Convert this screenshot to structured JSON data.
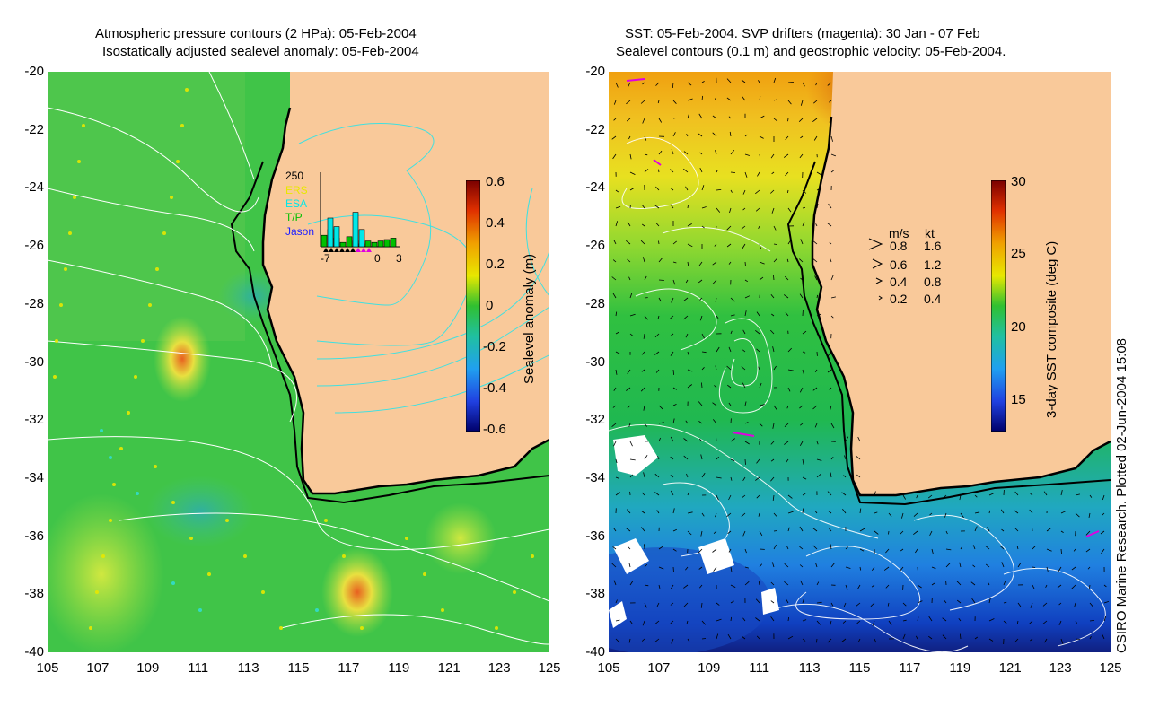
{
  "left_panel": {
    "title_line1": "Atmospheric pressure contours (2 HPa): 05-Feb-2004",
    "title_line2": "Isostatically adjusted sealevel anomaly: 05-Feb-2004",
    "y_ticks": [
      "-20",
      "-22",
      "-24",
      "-26",
      "-28",
      "-30",
      "-32",
      "-34",
      "-36",
      "-38",
      "-40"
    ],
    "x_ticks": [
      "105",
      "107",
      "109",
      "111",
      "113",
      "115",
      "117",
      "119",
      "121",
      "123",
      "125"
    ],
    "colorbar": {
      "label": "Sealevel anomaly (m)",
      "ticks": [
        "0.6",
        "0.4",
        "0.2",
        "0",
        "-0.2",
        "-0.4",
        "-0.6"
      ],
      "range": [
        -0.6,
        0.6
      ]
    },
    "inset": {
      "y_max_label": "250",
      "legend": [
        {
          "name": "ERS",
          "color": "#e8e800"
        },
        {
          "name": "ESA",
          "color": "#00e8e8"
        },
        {
          "name": "T/P",
          "color": "#00c000"
        },
        {
          "name": "Jason",
          "color": "#2020ff"
        }
      ],
      "x_ticks": [
        "-7",
        "0",
        "3"
      ],
      "bars": [
        {
          "series": "T/P",
          "values": [
            40,
            60,
            30,
            15,
            35,
            20,
            10,
            20,
            15,
            20,
            25,
            30
          ]
        },
        {
          "series": "ESA",
          "values": [
            0,
            100,
            70,
            0,
            0,
            120,
            60,
            0,
            0,
            0,
            0,
            0
          ]
        }
      ]
    }
  },
  "right_panel": {
    "title_line1": "SST: 05-Feb-2004. SVP drifters (magenta): 30 Jan - 07 Feb",
    "title_line2": "Sealevel contours (0.1 m) and geostrophic velocity: 05-Feb-2004.",
    "y_ticks": [
      "-20",
      "-22",
      "-24",
      "-26",
      "-28",
      "-30",
      "-32",
      "-34",
      "-36",
      "-38",
      "-40"
    ],
    "x_ticks": [
      "105",
      "107",
      "109",
      "111",
      "113",
      "115",
      "117",
      "119",
      "121",
      "123",
      "125"
    ],
    "colorbar": {
      "label": "3-day SST composite (deg C)",
      "ticks": [
        "30",
        "25",
        "20",
        "15"
      ],
      "range": [
        13,
        30
      ]
    },
    "velocity_legend": {
      "header_ms": "m/s",
      "header_kt": "kt",
      "rows": [
        {
          "ms": "0.8",
          "kt": "1.6"
        },
        {
          "ms": "0.6",
          "kt": "1.2"
        },
        {
          "ms": "0.4",
          "kt": "0.8"
        },
        {
          "ms": "0.2",
          "kt": "0.4"
        }
      ]
    }
  },
  "credit": "CSIRO Marine Research. Plotted 02-Jun-2004 15:08",
  "colors": {
    "land": "#f9c99a",
    "ocean_green": "#3cc23c",
    "contour_white": "#ffffff",
    "contour_cyan": "#40e0e0",
    "coast": "#000000",
    "drifter": "#e000e0"
  }
}
